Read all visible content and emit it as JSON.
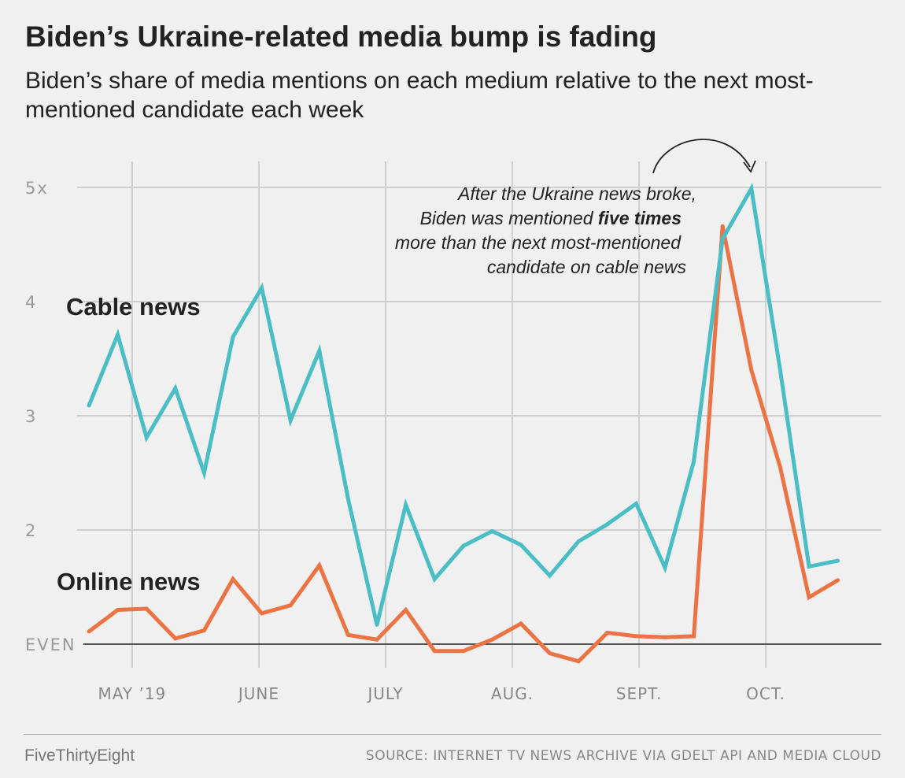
{
  "chart_data": {
    "type": "line",
    "title": "Biden’s Ukraine-related media bump is fading",
    "subtitle": "Biden’s share of media mentions on each medium relative to the next most-mentioned candidate each week",
    "ylim": [
      1,
      5
    ],
    "yticks": [
      {
        "value": 1,
        "label": "EVEN"
      },
      {
        "value": 2,
        "label": "2"
      },
      {
        "value": 3,
        "label": "3"
      },
      {
        "value": 4,
        "label": "4"
      },
      {
        "value": 5,
        "label": "5x"
      }
    ],
    "xticks": [
      {
        "week": 1.5,
        "label": "MAY ’19"
      },
      {
        "week": 5.9,
        "label": "JUNE"
      },
      {
        "week": 10.3,
        "label": "JULY"
      },
      {
        "week": 14.7,
        "label": "AUG."
      },
      {
        "week": 19.1,
        "label": "SEPT."
      },
      {
        "week": 23.5,
        "label": "OCT."
      }
    ],
    "x_weeks": [
      0,
      1,
      2,
      3,
      4,
      5,
      6,
      7,
      8,
      9,
      10,
      11,
      12,
      13,
      14,
      15,
      16,
      17,
      18,
      19,
      20,
      21,
      22,
      23,
      24,
      25,
      26
    ],
    "series": [
      {
        "name": "Cable news",
        "color": "#4bbec5",
        "values": [
          3.09,
          3.71,
          2.81,
          3.24,
          2.5,
          3.69,
          4.12,
          2.96,
          3.57,
          2.27,
          1.17,
          2.22,
          1.57,
          1.86,
          1.99,
          1.87,
          1.6,
          1.9,
          2.05,
          2.23,
          1.67,
          2.6,
          4.55,
          4.99,
          3.4,
          1.68,
          1.73
        ]
      },
      {
        "name": "Online news",
        "color": "#ec7444",
        "values": [
          1.11,
          1.3,
          1.31,
          1.05,
          1.12,
          1.57,
          1.27,
          1.34,
          1.69,
          1.08,
          1.04,
          1.3,
          0.94,
          0.94,
          1.04,
          1.18,
          0.92,
          0.85,
          1.1,
          1.07,
          1.06,
          1.07,
          4.66,
          3.4,
          2.55,
          1.41,
          1.56
        ]
      }
    ],
    "labels": {
      "cable": "Cable news",
      "online": "Online news"
    },
    "annotation": {
      "line1": "After the Ukraine news broke,",
      "line2_pre": "Biden was mentioned ",
      "line2_bold": "five times",
      "line3": "more than the next most-mentioned",
      "line4": "candidate on cable news"
    },
    "source": "SOURCE: INTERNET TV NEWS ARCHIVE VIA GDELT API AND MEDIA CLOUD",
    "brand": "FiveThirtyEight"
  }
}
